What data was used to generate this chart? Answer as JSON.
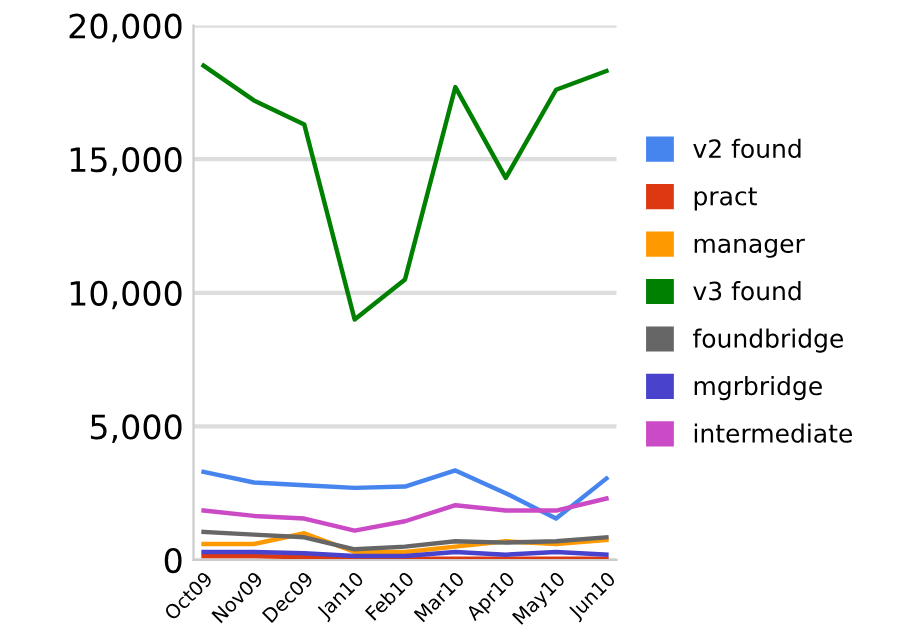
{
  "chart_data": {
    "type": "line",
    "categories": [
      "Oct09",
      "Nov09",
      "Dec09",
      "Jan10",
      "Feb10",
      "Mar10",
      "Apr10",
      "May10",
      "Jun10"
    ],
    "series": [
      {
        "name": "v2 found",
        "color": "#4684ee",
        "values": [
          3300,
          2900,
          2800,
          2700,
          2750,
          3350,
          2500,
          1550,
          3050
        ]
      },
      {
        "name": "pract",
        "color": "#dc3912",
        "values": [
          150,
          150,
          100,
          50,
          50,
          50,
          50,
          50,
          50
        ]
      },
      {
        "name": "manager",
        "color": "#ff9900",
        "values": [
          600,
          600,
          1000,
          300,
          300,
          500,
          700,
          600,
          750
        ]
      },
      {
        "name": "v3 found",
        "color": "#008000",
        "values": [
          18500,
          17200,
          16300,
          9000,
          10500,
          17700,
          14300,
          17600,
          18300
        ]
      },
      {
        "name": "foundbridge",
        "color": "#666666",
        "values": [
          1050,
          950,
          850,
          400,
          500,
          700,
          650,
          700,
          850
        ]
      },
      {
        "name": "mgrbridge",
        "color": "#4942cc",
        "values": [
          300,
          300,
          250,
          150,
          150,
          300,
          200,
          300,
          200
        ]
      },
      {
        "name": "intermediate",
        "color": "#cb4ac5",
        "values": [
          1850,
          1650,
          1550,
          1100,
          1450,
          2050,
          1850,
          1850,
          2300
        ]
      }
    ],
    "ylim": [
      0,
      20000
    ],
    "yticks": [
      {
        "value": 0,
        "label": "0"
      },
      {
        "value": 5000,
        "label": "5,000"
      },
      {
        "value": 10000,
        "label": "10,000"
      },
      {
        "value": 15000,
        "label": "15,000"
      },
      {
        "value": 20000,
        "label": "20,000"
      }
    ],
    "grid": "y",
    "legend": "right",
    "marker": "none",
    "line_style": "solid"
  }
}
